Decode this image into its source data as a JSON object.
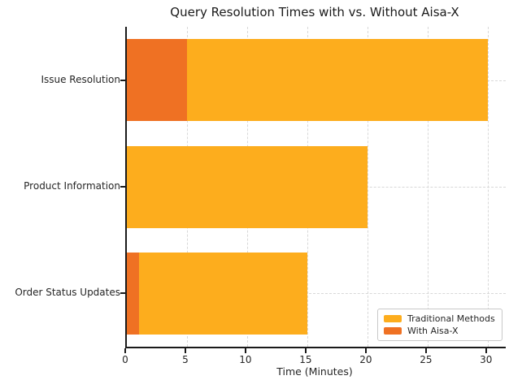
{
  "chart_data": {
    "type": "bar",
    "orientation": "horizontal",
    "title": "Query Resolution Times with vs. Without Aisa-X",
    "xlabel": "Time (Minutes)",
    "ylabel": "",
    "categories": [
      "Issue Resolution",
      "Product Information",
      "Order Status Updates"
    ],
    "series": [
      {
        "name": "Traditional Methods",
        "color": "#FDAD1D",
        "values": [
          30,
          20,
          15
        ]
      },
      {
        "name": "With Aisa-X",
        "color": "#EF7123",
        "values": [
          5,
          0,
          1
        ]
      }
    ],
    "xlim": [
      0,
      31.5
    ],
    "xticks": [
      0,
      5,
      10,
      15,
      20,
      25,
      30
    ],
    "grid": true,
    "grid_style": "dashed",
    "legend_position": "lower right",
    "spine_color": "#1a1a1a",
    "background_color": "#ffffff"
  }
}
